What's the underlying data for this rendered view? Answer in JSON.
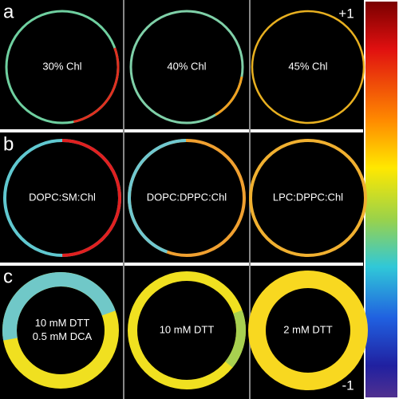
{
  "rows": [
    {
      "letter": "a",
      "panels": [
        "30% Chl",
        "40% Chl",
        "45% Chl"
      ]
    },
    {
      "letter": "b",
      "panels": [
        "DOPC:SM:Chl",
        "DOPC:DPPC:Chl",
        "LPC:DPPC:Chl"
      ]
    },
    {
      "letter": "c",
      "panels": [
        [
          "10 mM DTT",
          "0.5 mM DCA"
        ],
        [
          "10 mM DTT"
        ],
        [
          "2 mM DTT"
        ]
      ]
    }
  ],
  "colorbar": {
    "max": "+1",
    "min": "-1"
  }
}
